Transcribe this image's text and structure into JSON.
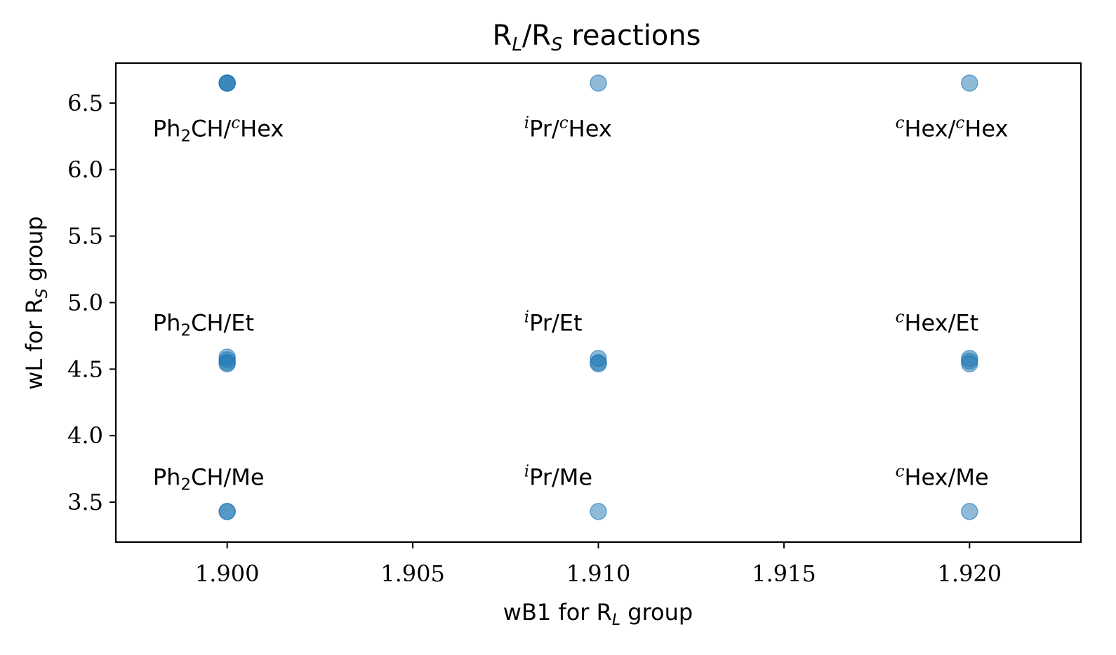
{
  "chart_data": {
    "type": "scatter",
    "title": "R_L/R_S reactions",
    "xlabel": "wB1 for R_L group",
    "ylabel": "wL for R_S group",
    "xlim": [
      1.897,
      1.923
    ],
    "ylim": [
      3.2,
      6.8
    ],
    "xticks": [
      1.9,
      1.905,
      1.91,
      1.915,
      1.92
    ],
    "xtick_labels": [
      "1.900",
      "1.905",
      "1.910",
      "1.915",
      "1.920"
    ],
    "yticks": [
      3.5,
      4.0,
      4.5,
      5.0,
      5.5,
      6.0,
      6.5
    ],
    "ytick_labels": [
      "3.5",
      "4.0",
      "4.5",
      "5.0",
      "5.5",
      "6.0",
      "6.5"
    ],
    "grid": false,
    "marker_color": "#1f77b4",
    "marker_alpha": 0.5,
    "points": [
      {
        "x": 1.9,
        "y": 6.65
      },
      {
        "x": 1.9,
        "y": 6.65
      },
      {
        "x": 1.9,
        "y": 6.65
      },
      {
        "x": 1.91,
        "y": 6.65
      },
      {
        "x": 1.92,
        "y": 6.65
      },
      {
        "x": 1.9,
        "y": 4.59
      },
      {
        "x": 1.9,
        "y": 4.57
      },
      {
        "x": 1.9,
        "y": 4.55
      },
      {
        "x": 1.9,
        "y": 4.54
      },
      {
        "x": 1.91,
        "y": 4.58
      },
      {
        "x": 1.91,
        "y": 4.55
      },
      {
        "x": 1.91,
        "y": 4.54
      },
      {
        "x": 1.92,
        "y": 4.58
      },
      {
        "x": 1.92,
        "y": 4.56
      },
      {
        "x": 1.92,
        "y": 4.54
      },
      {
        "x": 1.9,
        "y": 3.43
      },
      {
        "x": 1.9,
        "y": 3.43
      },
      {
        "x": 1.91,
        "y": 3.43
      },
      {
        "x": 1.92,
        "y": 3.43
      }
    ],
    "annotations": [
      {
        "x": 1.898,
        "y": 6.25,
        "parts": [
          {
            "t": "Ph"
          },
          {
            "t": "2",
            "sub": true
          },
          {
            "t": "CH/"
          },
          {
            "t": "c",
            "sup": true
          },
          {
            "t": "Hex"
          }
        ]
      },
      {
        "x": 1.908,
        "y": 6.25,
        "parts": [
          {
            "t": "i",
            "sup": true
          },
          {
            "t": "Pr/"
          },
          {
            "t": "c",
            "sup": true
          },
          {
            "t": "Hex"
          }
        ]
      },
      {
        "x": 1.918,
        "y": 6.25,
        "parts": [
          {
            "t": "c",
            "sup": true
          },
          {
            "t": "Hex/"
          },
          {
            "t": "c",
            "sup": true
          },
          {
            "t": "Hex"
          }
        ]
      },
      {
        "x": 1.898,
        "y": 4.79,
        "parts": [
          {
            "t": "Ph"
          },
          {
            "t": "2",
            "sub": true
          },
          {
            "t": "CH/Et"
          }
        ]
      },
      {
        "x": 1.908,
        "y": 4.79,
        "parts": [
          {
            "t": "i",
            "sup": true
          },
          {
            "t": "Pr/Et"
          }
        ]
      },
      {
        "x": 1.918,
        "y": 4.79,
        "parts": [
          {
            "t": "c",
            "sup": true
          },
          {
            "t": "Hex/Et"
          }
        ]
      },
      {
        "x": 1.898,
        "y": 3.63,
        "parts": [
          {
            "t": "Ph"
          },
          {
            "t": "2",
            "sub": true
          },
          {
            "t": "CH/Me"
          }
        ]
      },
      {
        "x": 1.908,
        "y": 3.63,
        "parts": [
          {
            "t": "i",
            "sup": true
          },
          {
            "t": "Pr/Me"
          }
        ]
      },
      {
        "x": 1.918,
        "y": 3.63,
        "parts": [
          {
            "t": "c",
            "sup": true
          },
          {
            "t": "Hex/Me"
          }
        ]
      }
    ]
  }
}
